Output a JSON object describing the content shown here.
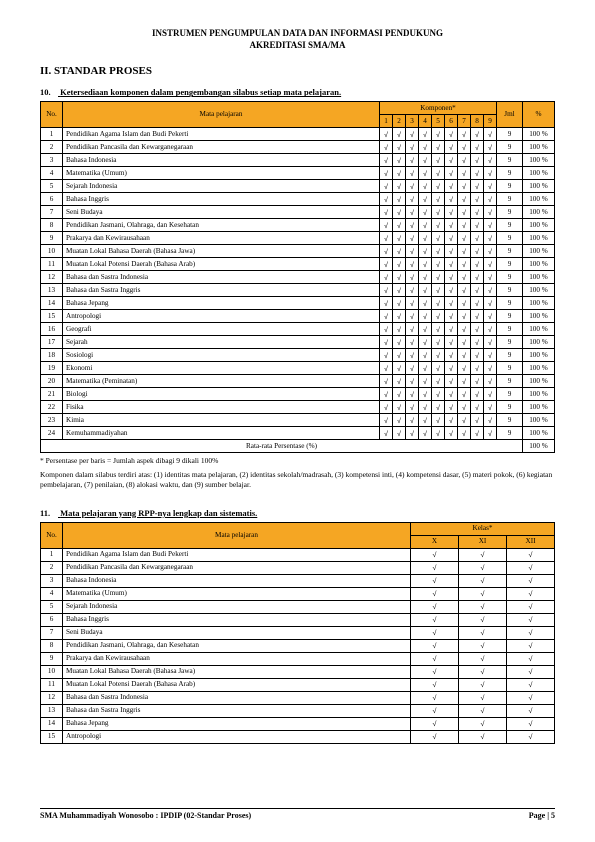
{
  "header": {
    "line1": "INSTRUMEN PENGUMPULAN DATA DAN INFORMASI PENDUKUNG",
    "line2": "AKREDITASI SMA/MA"
  },
  "section": "II. STANDAR PROSES",
  "item10": {
    "num": "10.",
    "title": "Ketersediaan komponen dalam pengembangan silabus setiap mata pelajaran.",
    "header_bg": "#f5a623",
    "cols": {
      "no": "No.",
      "mp": "Mata pelajaran",
      "komp": "Komponen*",
      "jml": "Jml",
      "pct": "%"
    },
    "komp_cols": [
      "1",
      "2",
      "3",
      "4",
      "5",
      "6",
      "7",
      "8",
      "9"
    ],
    "rows": [
      {
        "no": "1",
        "mp": "Pendidikan Agama Islam dan Budi Pekerti",
        "k": [
          "√",
          "√",
          "√",
          "√",
          "√",
          "√",
          "√",
          "√",
          "√"
        ],
        "jml": "9",
        "pct": "100 %"
      },
      {
        "no": "2",
        "mp": "Pendidikan Pancasila dan Kewarganegaraan",
        "k": [
          "√",
          "√",
          "√",
          "√",
          "√",
          "√",
          "√",
          "√",
          "√"
        ],
        "jml": "9",
        "pct": "100 %"
      },
      {
        "no": "3",
        "mp": "Bahasa Indonesia",
        "k": [
          "√",
          "√",
          "√",
          "√",
          "√",
          "√",
          "√",
          "√",
          "√"
        ],
        "jml": "9",
        "pct": "100 %"
      },
      {
        "no": "4",
        "mp": "Matematika (Umum)",
        "k": [
          "√",
          "√",
          "√",
          "√",
          "√",
          "√",
          "√",
          "√",
          "√"
        ],
        "jml": "9",
        "pct": "100 %"
      },
      {
        "no": "5",
        "mp": "Sejarah Indonesia",
        "k": [
          "√",
          "√",
          "√",
          "√",
          "√",
          "√",
          "√",
          "√",
          "√"
        ],
        "jml": "9",
        "pct": "100 %"
      },
      {
        "no": "6",
        "mp": "Bahasa Inggris",
        "k": [
          "√",
          "√",
          "√",
          "√",
          "√",
          "√",
          "√",
          "√",
          "√"
        ],
        "jml": "9",
        "pct": "100 %"
      },
      {
        "no": "7",
        "mp": "Seni Budaya",
        "k": [
          "√",
          "√",
          "√",
          "√",
          "√",
          "√",
          "√",
          "√",
          "√"
        ],
        "jml": "9",
        "pct": "100 %"
      },
      {
        "no": "8",
        "mp": "Pendidikan Jasmani, Olahraga, dan Kesehatan",
        "k": [
          "√",
          "√",
          "√",
          "√",
          "√",
          "√",
          "√",
          "√",
          "√"
        ],
        "jml": "9",
        "pct": "100 %"
      },
      {
        "no": "9",
        "mp": "Prakarya dan Kewirausahaan",
        "k": [
          "√",
          "√",
          "√",
          "√",
          "√",
          "√",
          "√",
          "√",
          "√"
        ],
        "jml": "9",
        "pct": "100 %"
      },
      {
        "no": "10",
        "mp": "Muatan Lokal Bahasa Daerah (Bahasa Jawa)",
        "k": [
          "√",
          "√",
          "√",
          "√",
          "√",
          "√",
          "√",
          "√",
          "√"
        ],
        "jml": "9",
        "pct": "100 %"
      },
      {
        "no": "11",
        "mp": "Muatan Lokal Potensi Daerah (Bahasa Arab)",
        "k": [
          "√",
          "√",
          "√",
          "√",
          "√",
          "√",
          "√",
          "√",
          "√"
        ],
        "jml": "9",
        "pct": "100 %"
      },
      {
        "no": "12",
        "mp": "Bahasa dan Sastra Indonesia",
        "k": [
          "√",
          "√",
          "√",
          "√",
          "√",
          "√",
          "√",
          "√",
          "√"
        ],
        "jml": "9",
        "pct": "100 %"
      },
      {
        "no": "13",
        "mp": "Bahasa dan Sastra Inggris",
        "k": [
          "√",
          "√",
          "√",
          "√",
          "√",
          "√",
          "√",
          "√",
          "√"
        ],
        "jml": "9",
        "pct": "100 %"
      },
      {
        "no": "14",
        "mp": "Bahasa Jepang",
        "k": [
          "√",
          "√",
          "√",
          "√",
          "√",
          "√",
          "√",
          "√",
          "√"
        ],
        "jml": "9",
        "pct": "100 %"
      },
      {
        "no": "15",
        "mp": "Antropologi",
        "k": [
          "√",
          "√",
          "√",
          "√",
          "√",
          "√",
          "√",
          "√",
          "√"
        ],
        "jml": "9",
        "pct": "100 %"
      },
      {
        "no": "16",
        "mp": "Geografi",
        "k": [
          "√",
          "√",
          "√",
          "√",
          "√",
          "√",
          "√",
          "√",
          "√"
        ],
        "jml": "9",
        "pct": "100 %"
      },
      {
        "no": "17",
        "mp": "Sejarah",
        "k": [
          "√",
          "√",
          "√",
          "√",
          "√",
          "√",
          "√",
          "√",
          "√"
        ],
        "jml": "9",
        "pct": "100 %"
      },
      {
        "no": "18",
        "mp": "Sosiologi",
        "k": [
          "√",
          "√",
          "√",
          "√",
          "√",
          "√",
          "√",
          "√",
          "√"
        ],
        "jml": "9",
        "pct": "100 %"
      },
      {
        "no": "19",
        "mp": "Ekonomi",
        "k": [
          "√",
          "√",
          "√",
          "√",
          "√",
          "√",
          "√",
          "√",
          "√"
        ],
        "jml": "9",
        "pct": "100 %"
      },
      {
        "no": "20",
        "mp": "Matematika (Peminatan)",
        "k": [
          "√",
          "√",
          "√",
          "√",
          "√",
          "√",
          "√",
          "√",
          "√"
        ],
        "jml": "9",
        "pct": "100 %"
      },
      {
        "no": "21",
        "mp": "Biologi",
        "k": [
          "√",
          "√",
          "√",
          "√",
          "√",
          "√",
          "√",
          "√",
          "√"
        ],
        "jml": "9",
        "pct": "100 %"
      },
      {
        "no": "22",
        "mp": "Fisika",
        "k": [
          "√",
          "√",
          "√",
          "√",
          "√",
          "√",
          "√",
          "√",
          "√"
        ],
        "jml": "9",
        "pct": "100 %"
      },
      {
        "no": "23",
        "mp": "Kimia",
        "k": [
          "√",
          "√",
          "√",
          "√",
          "√",
          "√",
          "√",
          "√",
          "√"
        ],
        "jml": "9",
        "pct": "100 %"
      },
      {
        "no": "24",
        "mp": "Kemuhammadiyahan",
        "k": [
          "√",
          "√",
          "√",
          "√",
          "√",
          "√",
          "√",
          "√",
          "√"
        ],
        "jml": "9",
        "pct": "100 %"
      }
    ],
    "summary_label": "Rata-rata Persentase (%)",
    "summary_pct": "100 %",
    "note1": "* Persentase per baris = Jumlah aspek dibagi 9 dikali 100%",
    "note2": "Komponen dalam silabus terdiri atas: (1) identitas mata pelajaran, (2) identitas sekolah/madrasah, (3) kompetensi inti, (4) kompetensi dasar, (5) materi pokok, (6) kegiatan pembelajaran, (7) penilaian, (8) alokasi waktu, dan (9) sumber belajar."
  },
  "item11": {
    "num": "11.",
    "title": "Mata pelajaran yang RPP-nya lengkap dan sistematis.",
    "cols": {
      "no": "No.",
      "mp": "Mata pelajaran",
      "kelas": "Kelas*"
    },
    "kelas_cols": [
      "X",
      "XI",
      "XII"
    ],
    "rows": [
      {
        "no": "1",
        "mp": "Pendidikan Agama Islam dan Budi Pekerti",
        "k": [
          "√",
          "√",
          "√"
        ]
      },
      {
        "no": "2",
        "mp": "Pendidikan Pancasila dan Kewarganegaraan",
        "k": [
          "√",
          "√",
          "√"
        ]
      },
      {
        "no": "3",
        "mp": "Bahasa Indonesia",
        "k": [
          "√",
          "√",
          "√"
        ]
      },
      {
        "no": "4",
        "mp": "Matematika (Umum)",
        "k": [
          "√",
          "√",
          "√"
        ]
      },
      {
        "no": "5",
        "mp": "Sejarah Indonesia",
        "k": [
          "√",
          "√",
          "√"
        ]
      },
      {
        "no": "6",
        "mp": "Bahasa Inggris",
        "k": [
          "√",
          "√",
          "√"
        ]
      },
      {
        "no": "7",
        "mp": "Seni Budaya",
        "k": [
          "√",
          "√",
          "√"
        ]
      },
      {
        "no": "8",
        "mp": "Pendidikan Jasmani, Olahraga, dan Kesehatan",
        "k": [
          "√",
          "√",
          "√"
        ]
      },
      {
        "no": "9",
        "mp": "Prakarya dan Kewirausahaan",
        "k": [
          "√",
          "√",
          "√"
        ]
      },
      {
        "no": "10",
        "mp": "Muatan Lokal Bahasa Daerah (Bahasa Jawa)",
        "k": [
          "√",
          "√",
          "√"
        ]
      },
      {
        "no": "11",
        "mp": "Muatan Lokal Potensi Daerah (Bahasa Arab)",
        "k": [
          "√",
          "√",
          "√"
        ]
      },
      {
        "no": "12",
        "mp": "Bahasa dan Sastra Indonesia",
        "k": [
          "√",
          "√",
          "√"
        ]
      },
      {
        "no": "13",
        "mp": "Bahasa dan Sastra Inggris",
        "k": [
          "√",
          "√",
          "√"
        ]
      },
      {
        "no": "14",
        "mp": "Bahasa Jepang",
        "k": [
          "√",
          "√",
          "√"
        ]
      },
      {
        "no": "15",
        "mp": "Antropologi",
        "k": [
          "√",
          "√",
          "√"
        ]
      }
    ]
  },
  "footer": {
    "left": "SMA Muhammadiyah Wonosobo : IPDIP (02-Standar Proses)",
    "right": "Page | 5"
  }
}
